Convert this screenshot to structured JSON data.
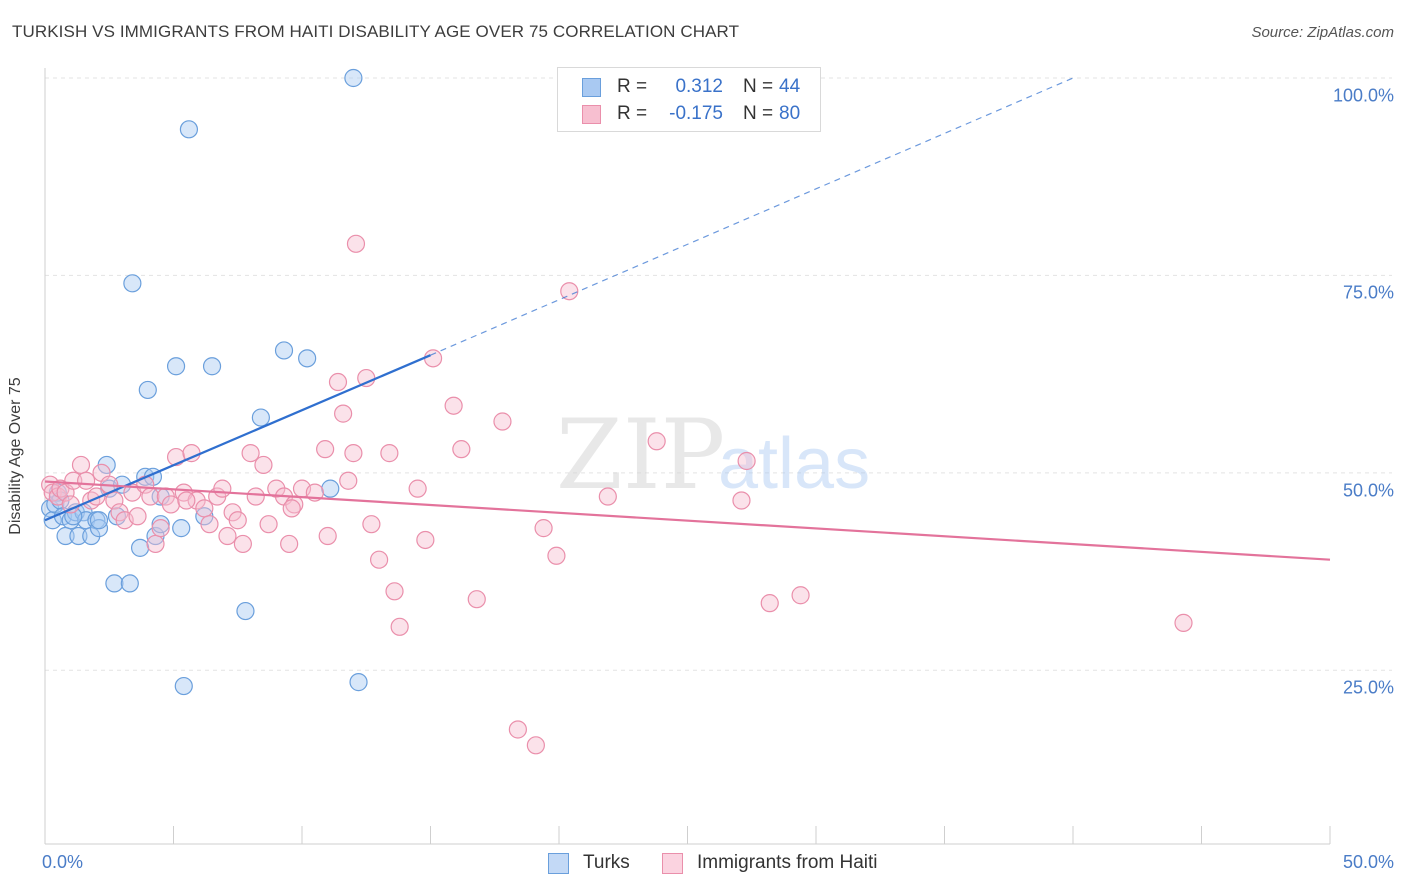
{
  "title": "TURKISH VS IMMIGRANTS FROM HAITI DISABILITY AGE OVER 75 CORRELATION CHART",
  "source": "Source: ZipAtlas.com",
  "watermark": {
    "zip": "ZIP",
    "atlas": "atlas"
  },
  "colors": {
    "turks_fill": "#a9c9f2",
    "turks_stroke": "#6a9fdc",
    "turks_line": "#2f6fcf",
    "haiti_fill": "#f7bfd0",
    "haiti_stroke": "#ea8fab",
    "haiti_line": "#e3739b",
    "axis_text": "#4a7cc7",
    "grid": "#e3e3e3"
  },
  "legend": {
    "rows": [
      {
        "r_label": "R =",
        "r_value": "0.312",
        "n_label": "N =",
        "n_value": "44"
      },
      {
        "r_label": "R =",
        "r_value": "-0.175",
        "n_label": "N =",
        "n_value": "80"
      }
    ]
  },
  "bottom_legend": [
    "Turks",
    "Immigrants from Haiti"
  ],
  "chart_data": {
    "type": "scatter",
    "title": "TURKISH VS IMMIGRANTS FROM HAITI DISABILITY AGE OVER 75 CORRELATION CHART",
    "xlabel": "",
    "ylabel": "Disability Age Over 75",
    "xlim": [
      0,
      50
    ],
    "ylim": [
      3,
      100
    ],
    "x_tick_labels": [
      "0.0%",
      "50.0%"
    ],
    "y_ticks": [
      25,
      50,
      75,
      100
    ],
    "y_tick_labels": [
      "25.0%",
      "50.0%",
      "75.0%",
      "100.0%"
    ],
    "grid": "horizontal dashed",
    "legend_position": "top-center",
    "series": [
      {
        "name": "Turks",
        "r": 0.312,
        "n": 44,
        "trend": {
          "x": [
            0,
            15,
            40
          ],
          "y": [
            44.0,
            64.9,
            100.0
          ],
          "solid_until_x": 15
        },
        "points": [
          [
            0.2,
            45.5
          ],
          [
            0.3,
            44.0
          ],
          [
            0.4,
            46.0
          ],
          [
            0.5,
            47.5
          ],
          [
            0.6,
            46.5
          ],
          [
            0.7,
            44.5
          ],
          [
            0.8,
            42.0
          ],
          [
            1.0,
            44.0
          ],
          [
            1.2,
            45.0
          ],
          [
            1.3,
            42.0
          ],
          [
            1.5,
            45.0
          ],
          [
            1.6,
            44.0
          ],
          [
            1.8,
            42.0
          ],
          [
            2.0,
            44.0
          ],
          [
            2.1,
            43.0
          ],
          [
            2.4,
            51.0
          ],
          [
            2.5,
            48.0
          ],
          [
            2.7,
            36.0
          ],
          [
            2.8,
            44.5
          ],
          [
            3.0,
            48.5
          ],
          [
            3.3,
            36.0
          ],
          [
            3.4,
            74.0
          ],
          [
            3.7,
            40.5
          ],
          [
            3.9,
            49.5
          ],
          [
            4.0,
            60.5
          ],
          [
            4.2,
            49.5
          ],
          [
            4.3,
            42.0
          ],
          [
            4.5,
            47.0
          ],
          [
            4.5,
            43.5
          ],
          [
            5.1,
            63.5
          ],
          [
            5.3,
            43.0
          ],
          [
            5.4,
            23.0
          ],
          [
            5.6,
            93.5
          ],
          [
            6.2,
            44.5
          ],
          [
            6.5,
            63.5
          ],
          [
            7.8,
            32.5
          ],
          [
            8.4,
            57.0
          ],
          [
            9.3,
            65.5
          ],
          [
            10.2,
            64.5
          ],
          [
            11.1,
            48.0
          ],
          [
            12.0,
            100.0
          ],
          [
            12.2,
            23.5
          ],
          [
            2.1,
            44.0
          ],
          [
            1.1,
            44.5
          ]
        ]
      },
      {
        "name": "Immigrants from Haiti",
        "r": -0.175,
        "n": 80,
        "trend": {
          "x": [
            0,
            50
          ],
          "y": [
            48.9,
            39.0
          ]
        },
        "points": [
          [
            0.2,
            48.5
          ],
          [
            0.3,
            47.5
          ],
          [
            0.5,
            47.0
          ],
          [
            0.6,
            48.0
          ],
          [
            0.8,
            47.5
          ],
          [
            1.0,
            46.0
          ],
          [
            1.1,
            49.0
          ],
          [
            1.4,
            51.0
          ],
          [
            1.6,
            49.0
          ],
          [
            1.8,
            46.5
          ],
          [
            2.0,
            47.0
          ],
          [
            2.2,
            50.0
          ],
          [
            2.5,
            48.5
          ],
          [
            2.7,
            46.5
          ],
          [
            2.9,
            45.0
          ],
          [
            3.1,
            44.0
          ],
          [
            3.4,
            47.5
          ],
          [
            3.6,
            44.5
          ],
          [
            3.9,
            48.5
          ],
          [
            4.1,
            47.0
          ],
          [
            4.3,
            41.0
          ],
          [
            4.5,
            43.0
          ],
          [
            4.7,
            47.0
          ],
          [
            4.9,
            46.0
          ],
          [
            5.1,
            52.0
          ],
          [
            5.4,
            47.5
          ],
          [
            5.7,
            52.5
          ],
          [
            5.9,
            46.5
          ],
          [
            6.2,
            45.5
          ],
          [
            6.4,
            43.5
          ],
          [
            6.7,
            47.0
          ],
          [
            6.9,
            48.0
          ],
          [
            7.1,
            42.0
          ],
          [
            7.3,
            45.0
          ],
          [
            7.5,
            44.0
          ],
          [
            7.7,
            41.0
          ],
          [
            8.0,
            52.5
          ],
          [
            8.2,
            47.0
          ],
          [
            8.5,
            51.0
          ],
          [
            8.7,
            43.5
          ],
          [
            9.0,
            48.0
          ],
          [
            9.3,
            47.0
          ],
          [
            9.5,
            41.0
          ],
          [
            9.7,
            46.0
          ],
          [
            10.0,
            48.0
          ],
          [
            10.5,
            47.5
          ],
          [
            10.9,
            53.0
          ],
          [
            11.0,
            42.0
          ],
          [
            11.4,
            61.5
          ],
          [
            11.6,
            57.5
          ],
          [
            11.8,
            49.0
          ],
          [
            12.0,
            52.5
          ],
          [
            12.1,
            79.0
          ],
          [
            12.5,
            62.0
          ],
          [
            12.7,
            43.5
          ],
          [
            13.0,
            39.0
          ],
          [
            13.4,
            52.5
          ],
          [
            13.6,
            35.0
          ],
          [
            13.8,
            30.5
          ],
          [
            14.5,
            48.0
          ],
          [
            14.8,
            41.5
          ],
          [
            15.1,
            64.5
          ],
          [
            15.9,
            58.5
          ],
          [
            16.2,
            53.0
          ],
          [
            16.8,
            34.0
          ],
          [
            17.8,
            56.5
          ],
          [
            18.4,
            17.5
          ],
          [
            19.1,
            15.5
          ],
          [
            19.4,
            43.0
          ],
          [
            19.9,
            39.5
          ],
          [
            20.4,
            73.0
          ],
          [
            21.9,
            47.0
          ],
          [
            23.8,
            54.0
          ],
          [
            27.1,
            46.5
          ],
          [
            27.3,
            51.5
          ],
          [
            28.2,
            33.5
          ],
          [
            29.4,
            34.5
          ],
          [
            44.3,
            31.0
          ],
          [
            9.6,
            45.5
          ],
          [
            5.5,
            46.5
          ]
        ]
      }
    ]
  }
}
